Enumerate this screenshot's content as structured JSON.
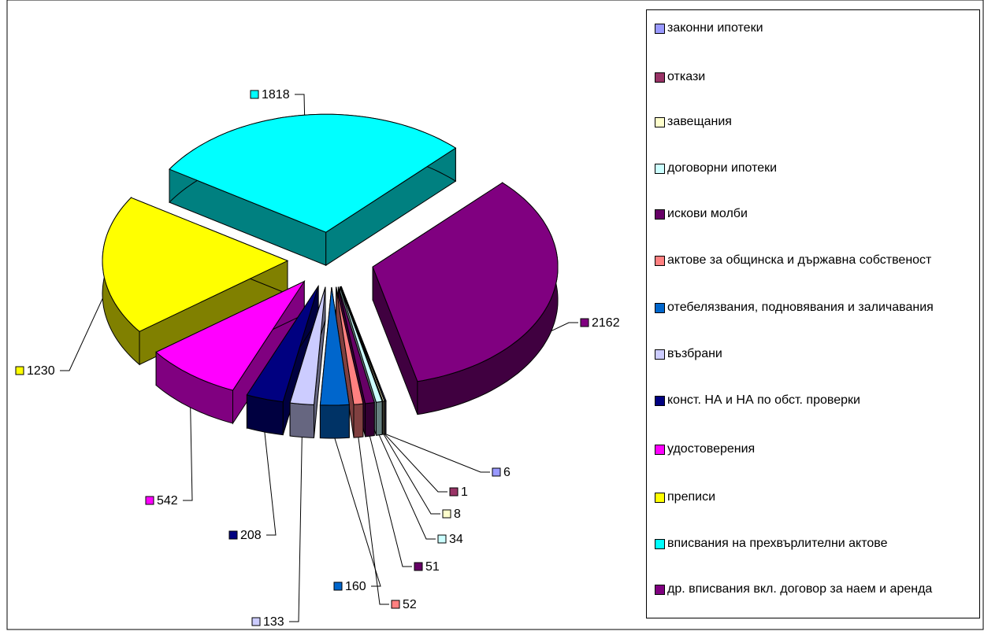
{
  "chart_data": {
    "type": "pie3d",
    "categories": [
      "законни ипотеки",
      "откази",
      "завещания",
      "договорни ипотеки",
      "искови молби",
      "актове за общинска и държавна собственост",
      "отебелязвания, подновявания и заличавания",
      "възбрани",
      "конст. НА и НА по обст. проверки",
      "удостоверения",
      "преписи",
      "вписвания на прехвърлителни актове",
      "др. вписвания вкл. договор за наем и аренда"
    ],
    "values": [
      6,
      1,
      8,
      34,
      51,
      52,
      160,
      133,
      208,
      542,
      1230,
      1818,
      2162
    ],
    "colors": [
      "#9999ff",
      "#993366",
      "#ffffcc",
      "#ccffff",
      "#660066",
      "#ff8080",
      "#0066cc",
      "#ccccff",
      "#000080",
      "#ff00ff",
      "#ffff00",
      "#00ffff",
      "#800080"
    ],
    "legend": "right"
  }
}
